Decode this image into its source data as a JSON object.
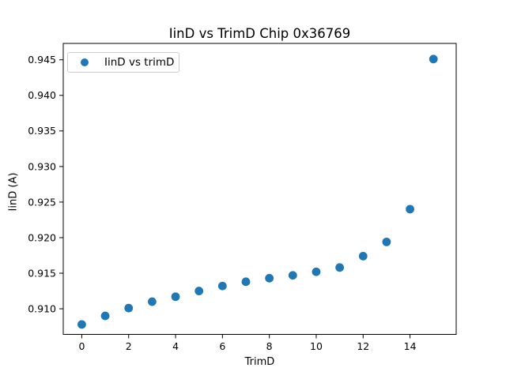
{
  "figure": {
    "background_color": "#ffffff",
    "frame_color": "#000000",
    "text_color": "#000000"
  },
  "chart_data": {
    "type": "scatter",
    "title": "IinD vs TrimD Chip 0x36769",
    "xlabel": "TrimD",
    "ylabel": "IinD (A)",
    "legend_label": "IinD vs trimD",
    "legend_position": "upper left",
    "grid": false,
    "marker": "circle",
    "marker_color": "#1f77b4",
    "x": [
      0,
      1,
      2,
      3,
      4,
      5,
      6,
      7,
      8,
      9,
      10,
      11,
      12,
      13,
      14,
      15
    ],
    "y": [
      0.9078,
      0.909,
      0.9101,
      0.911,
      0.9117,
      0.9125,
      0.9132,
      0.9138,
      0.9143,
      0.9147,
      0.9152,
      0.9158,
      0.9174,
      0.9194,
      0.924,
      0.9451
    ],
    "xlim": [
      -0.79,
      15.97
    ],
    "ylim": [
      0.9064,
      0.9473
    ],
    "xticks": [
      0,
      2,
      4,
      6,
      8,
      10,
      12,
      14
    ],
    "xtick_labels": [
      "0",
      "2",
      "4",
      "6",
      "8",
      "10",
      "12",
      "14"
    ],
    "yticks": [
      0.91,
      0.915,
      0.92,
      0.925,
      0.93,
      0.935,
      0.94,
      0.945
    ],
    "ytick_labels": [
      "0.910",
      "0.915",
      "0.920",
      "0.925",
      "0.930",
      "0.935",
      "0.940",
      "0.945"
    ]
  }
}
